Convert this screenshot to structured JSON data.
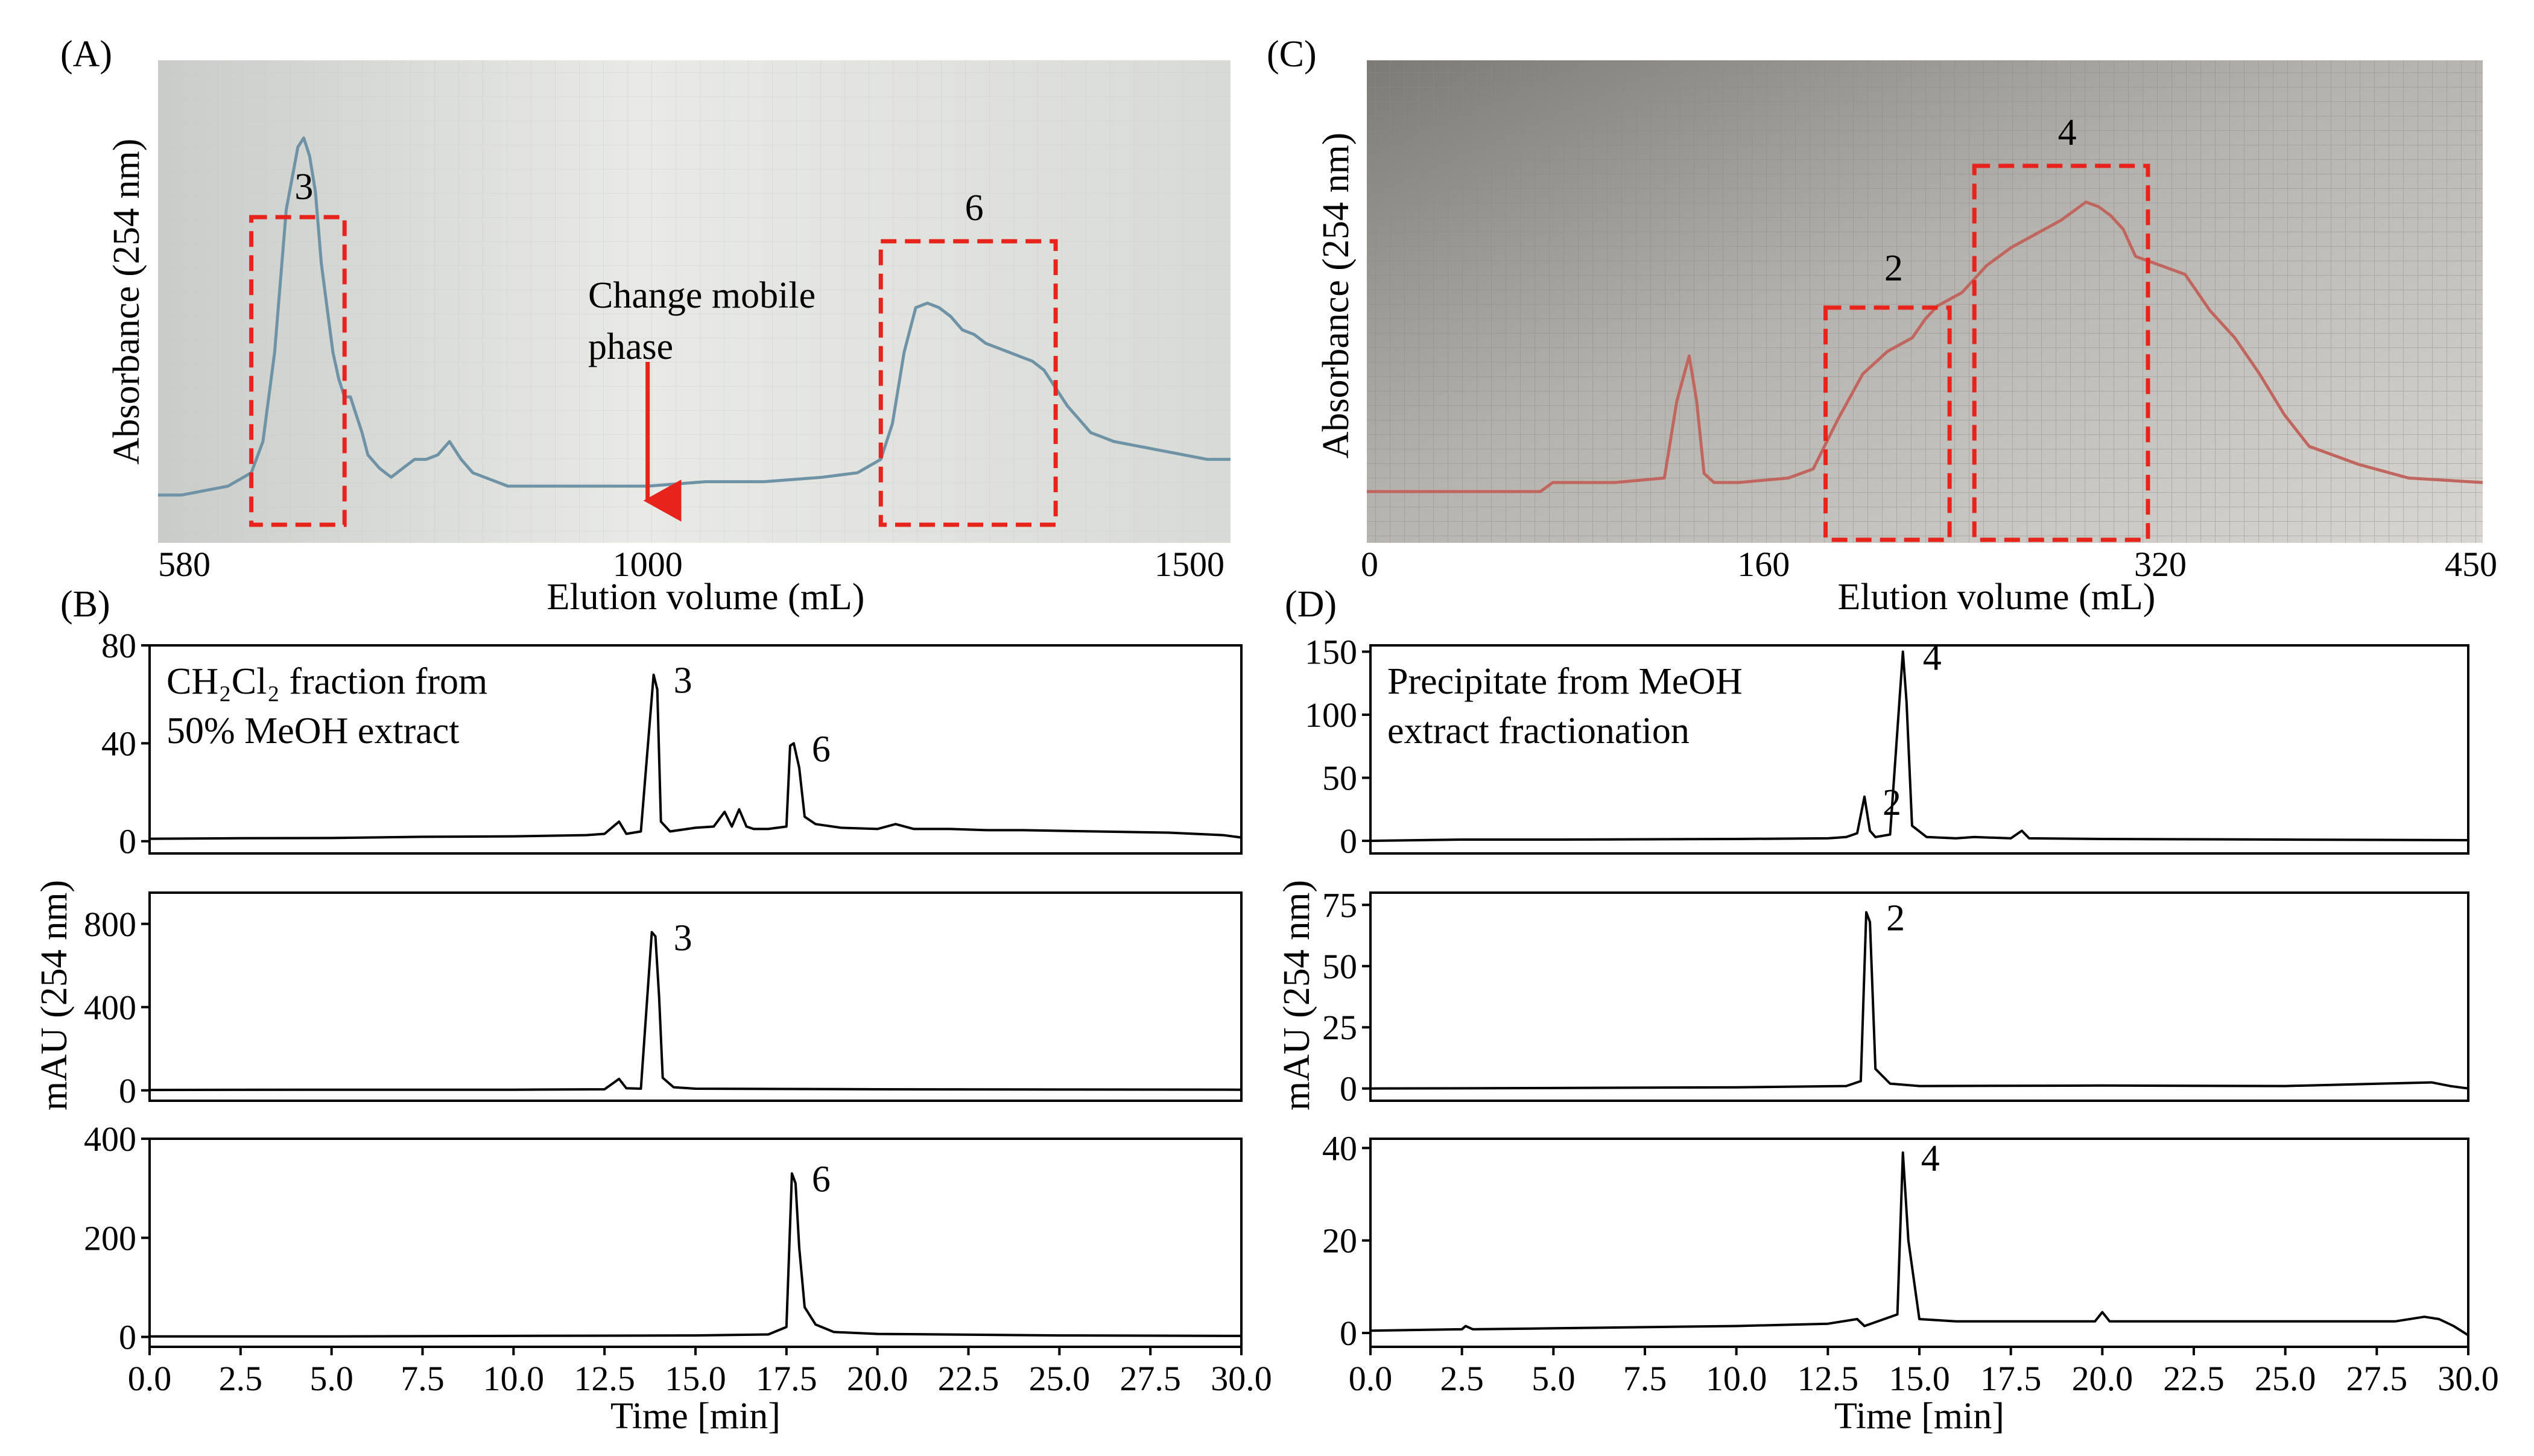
{
  "chart_data": [
    {
      "id": "A",
      "type": "line",
      "panel_label": "(A)",
      "source": "photo of chart-recorder paper",
      "xlabel": "Elution volume (mL)",
      "ylabel": "Absorbance (254 nm)",
      "xlim": [
        580,
        1500
      ],
      "ylim": [
        0,
        1
      ],
      "x_ticks": [
        "580",
        "1000",
        "1500"
      ],
      "x_tick_values": [
        580,
        1000,
        1500
      ],
      "x": [
        580,
        600,
        620,
        640,
        660,
        670,
        680,
        690,
        700,
        705,
        710,
        715,
        720,
        725,
        730,
        735,
        740,
        745,
        750,
        755,
        760,
        770,
        780,
        790,
        800,
        810,
        820,
        830,
        840,
        850,
        860,
        870,
        880,
        890,
        900,
        950,
        1000,
        1050,
        1100,
        1150,
        1180,
        1200,
        1210,
        1220,
        1230,
        1240,
        1250,
        1260,
        1270,
        1280,
        1290,
        1300,
        1310,
        1320,
        1330,
        1340,
        1350,
        1360,
        1370,
        1380,
        1390,
        1400,
        1420,
        1440,
        1460,
        1480,
        1500
      ],
      "y": [
        0.08,
        0.08,
        0.09,
        0.1,
        0.13,
        0.2,
        0.4,
        0.72,
        0.86,
        0.88,
        0.84,
        0.76,
        0.6,
        0.5,
        0.4,
        0.34,
        0.3,
        0.3,
        0.26,
        0.22,
        0.17,
        0.14,
        0.12,
        0.14,
        0.16,
        0.16,
        0.17,
        0.2,
        0.16,
        0.13,
        0.12,
        0.11,
        0.1,
        0.1,
        0.1,
        0.1,
        0.1,
        0.11,
        0.11,
        0.12,
        0.13,
        0.16,
        0.24,
        0.4,
        0.5,
        0.51,
        0.5,
        0.48,
        0.45,
        0.44,
        0.42,
        0.41,
        0.4,
        0.39,
        0.38,
        0.36,
        0.32,
        0.28,
        0.25,
        0.22,
        0.21,
        0.2,
        0.19,
        0.18,
        0.17,
        0.16,
        0.16
      ],
      "annotations": [
        {
          "label": "3",
          "x_range": [
            660,
            740
          ]
        },
        {
          "label": "6",
          "x_range": [
            1200,
            1350
          ]
        },
        {
          "label": "Change mobile",
          "label2": "phase",
          "arrow_x": 1000
        }
      ]
    },
    {
      "id": "C",
      "type": "line",
      "panel_label": "(C)",
      "source": "photo of chart-recorder paper",
      "xlabel": "Elution volume (mL)",
      "ylabel": "Absorbance (254 nm)",
      "xlim": [
        0,
        450
      ],
      "ylim": [
        0,
        1
      ],
      "x_ticks": [
        "0",
        "160",
        "320",
        "450"
      ],
      "x_tick_values": [
        0,
        160,
        320,
        450
      ],
      "x": [
        0,
        40,
        70,
        75,
        100,
        120,
        125,
        130,
        133,
        136,
        140,
        150,
        170,
        180,
        190,
        200,
        210,
        220,
        225,
        230,
        240,
        245,
        250,
        260,
        270,
        280,
        285,
        290,
        295,
        300,
        305,
        310,
        320,
        330,
        340,
        350,
        360,
        370,
        380,
        400,
        420,
        450
      ],
      "y": [
        0.1,
        0.1,
        0.1,
        0.12,
        0.12,
        0.13,
        0.3,
        0.4,
        0.3,
        0.14,
        0.12,
        0.12,
        0.13,
        0.15,
        0.26,
        0.36,
        0.41,
        0.44,
        0.48,
        0.51,
        0.54,
        0.57,
        0.6,
        0.64,
        0.67,
        0.7,
        0.72,
        0.74,
        0.73,
        0.71,
        0.68,
        0.62,
        0.6,
        0.58,
        0.5,
        0.44,
        0.36,
        0.27,
        0.2,
        0.16,
        0.13,
        0.12
      ],
      "annotations": [
        {
          "label": "2",
          "x_range": [
            185,
            235
          ]
        },
        {
          "label": "4",
          "x_range": [
            245,
            315
          ]
        }
      ]
    },
    {
      "id": "B1",
      "type": "line",
      "panel_label": "(B)",
      "ylabel": "mAU (254 nm)",
      "inset_text": [
        "CH₂Cl₂ fraction from",
        "50% MeOH extract"
      ],
      "xlim": [
        0,
        30
      ],
      "ylim": [
        -5,
        80
      ],
      "y_ticks": [
        "0",
        "40",
        "80"
      ],
      "y_tick_values": [
        0,
        40,
        80
      ],
      "x": [
        0,
        2.5,
        5,
        7.5,
        10,
        12,
        12.5,
        12.9,
        13.1,
        13.5,
        13.85,
        13.95,
        14.05,
        14.3,
        15,
        15.5,
        15.8,
        16,
        16.2,
        16.4,
        16.6,
        17,
        17.5,
        17.6,
        17.7,
        17.85,
        18,
        18.3,
        19,
        20,
        20.5,
        21,
        22,
        23,
        24,
        26,
        28,
        29.5,
        30
      ],
      "y": [
        1,
        1.2,
        1.3,
        1.8,
        2,
        2.5,
        3,
        8,
        3,
        4,
        68,
        62,
        8,
        4,
        5.5,
        6,
        12,
        6,
        13,
        6,
        5,
        5,
        6,
        39,
        40,
        30,
        10,
        7,
        5.5,
        5,
        7,
        5,
        5,
        4.5,
        4.5,
        4,
        3.5,
        2.5,
        1.5
      ],
      "peak_labels": [
        {
          "label": "3",
          "x": 13.9,
          "y": 68
        },
        {
          "label": "6",
          "x": 17.7,
          "y": 40
        }
      ]
    },
    {
      "id": "B2",
      "type": "line",
      "xlim": [
        0,
        30
      ],
      "ylim": [
        -50,
        950
      ],
      "y_ticks": [
        "0",
        "400",
        "800"
      ],
      "y_tick_values": [
        0,
        400,
        800
      ],
      "x": [
        0,
        5,
        10,
        12.5,
        12.9,
        13.1,
        13.5,
        13.8,
        13.9,
        14.0,
        14.1,
        14.4,
        15,
        20,
        25,
        30
      ],
      "y": [
        2,
        3,
        3,
        5,
        55,
        10,
        8,
        760,
        740,
        450,
        60,
        15,
        8,
        5,
        4,
        3
      ],
      "peak_labels": [
        {
          "label": "3",
          "x": 13.9,
          "y": 760
        }
      ]
    },
    {
      "id": "B3",
      "type": "line",
      "xlabel": "Time [min]",
      "xlim": [
        0,
        30
      ],
      "ylim": [
        -20,
        400
      ],
      "y_ticks": [
        "0",
        "200",
        "400"
      ],
      "y_tick_values": [
        0,
        200,
        400
      ],
      "x_ticks": [
        "0.0",
        "2.5",
        "5.0",
        "7.5",
        "10.0",
        "12.5",
        "15.0",
        "17.5",
        "20.0",
        "22.5",
        "25.0",
        "27.5",
        "30.0"
      ],
      "x_tick_values": [
        0,
        2.5,
        5,
        7.5,
        10,
        12.5,
        15,
        17.5,
        20,
        22.5,
        25,
        27.5,
        30
      ],
      "x": [
        0,
        5,
        10,
        15,
        17,
        17.5,
        17.65,
        17.75,
        17.85,
        18.0,
        18.3,
        18.8,
        20,
        25,
        30
      ],
      "y": [
        1,
        1,
        2,
        3,
        5,
        20,
        330,
        310,
        180,
        60,
        25,
        10,
        6,
        3,
        2
      ],
      "peak_labels": [
        {
          "label": "6",
          "x": 17.7,
          "y": 330
        }
      ]
    },
    {
      "id": "D1",
      "type": "line",
      "panel_label": "(D)",
      "ylabel": "mAU (254 nm)",
      "inset_text": [
        "Precipitate from MeOH",
        "extract fractionation"
      ],
      "xlim": [
        0,
        30
      ],
      "ylim": [
        -10,
        155
      ],
      "y_ticks": [
        "0",
        "50",
        "100",
        "150"
      ],
      "y_tick_values": [
        0,
        50,
        100,
        150
      ],
      "x": [
        0,
        2.5,
        5,
        10,
        12.5,
        13,
        13.3,
        13.5,
        13.65,
        13.8,
        14.2,
        14.55,
        14.65,
        14.8,
        15.2,
        16,
        16.5,
        17.5,
        17.8,
        18,
        20,
        25,
        30
      ],
      "y": [
        0,
        1,
        1,
        1.5,
        2,
        3,
        6,
        35,
        8,
        3,
        5,
        150,
        110,
        12,
        3,
        2,
        3,
        2,
        8,
        2,
        1.5,
        1,
        0.5
      ],
      "peak_labels": [
        {
          "label": "2",
          "x": 13.5,
          "y": 35
        },
        {
          "label": "4",
          "x": 14.6,
          "y": 150
        }
      ]
    },
    {
      "id": "D2",
      "type": "line",
      "xlim": [
        0,
        30
      ],
      "ylim": [
        -5,
        80
      ],
      "y_ticks": [
        "0",
        "25",
        "50",
        "75"
      ],
      "y_tick_values": [
        0,
        25,
        50,
        75
      ],
      "x": [
        0,
        5,
        10,
        13,
        13.4,
        13.55,
        13.65,
        13.8,
        14.2,
        15,
        20,
        25,
        29,
        29.5,
        30
      ],
      "y": [
        0,
        0.2,
        0.5,
        1,
        3,
        72,
        68,
        8,
        2,
        1,
        1.2,
        1,
        2.5,
        1,
        0
      ],
      "peak_labels": [
        {
          "label": "2",
          "x": 13.6,
          "y": 72
        }
      ]
    },
    {
      "id": "D3",
      "type": "line",
      "xlabel": "Time [min]",
      "xlim": [
        0,
        30
      ],
      "ylim": [
        -3,
        42
      ],
      "y_ticks": [
        "0",
        "20",
        "40"
      ],
      "y_tick_values": [
        0,
        20,
        40
      ],
      "x_ticks": [
        "0.0",
        "2.5",
        "5.0",
        "7.5",
        "10.0",
        "12.5",
        "15.0",
        "17.5",
        "20.0",
        "22.5",
        "25.0",
        "27.5",
        "30.0"
      ],
      "x_tick_values": [
        0,
        2.5,
        5,
        7.5,
        10,
        12.5,
        15,
        17.5,
        20,
        22.5,
        25,
        27.5,
        30
      ],
      "x": [
        0,
        2.5,
        2.6,
        2.8,
        5,
        10,
        12.5,
        13.3,
        13.5,
        14.4,
        14.55,
        14.7,
        15,
        16,
        19.8,
        20,
        20.2,
        21,
        24,
        26,
        28,
        28.8,
        29.2,
        29.6,
        30
      ],
      "y": [
        0.5,
        0.8,
        1.5,
        0.8,
        1,
        1.5,
        2,
        3,
        1.5,
        4,
        39,
        20,
        3,
        2.5,
        2.5,
        4.5,
        2.5,
        2.5,
        2.5,
        2.5,
        2.5,
        3.5,
        3,
        1.5,
        -0.5
      ],
      "peak_labels": [
        {
          "label": "4",
          "x": 14.55,
          "y": 39
        }
      ]
    }
  ]
}
